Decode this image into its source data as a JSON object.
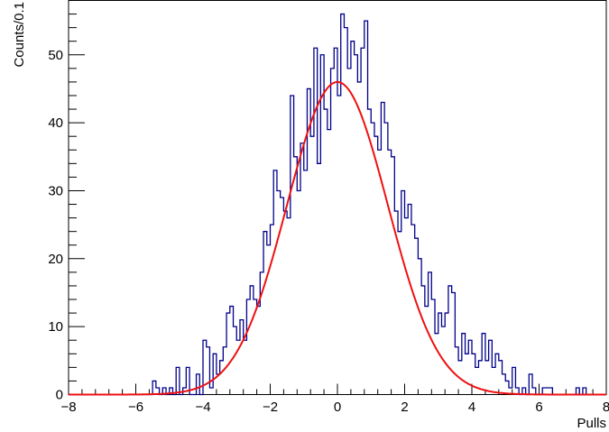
{
  "chart_data": {
    "type": "histogram",
    "title": "",
    "xlabel": "Pulls",
    "ylabel": "Counts/0.1",
    "xlim": [
      -8,
      8
    ],
    "ylim": [
      0,
      58
    ],
    "bin_width": 0.1,
    "x_ticks": [
      -8,
      -6,
      -4,
      -2,
      0,
      2,
      4,
      6,
      8
    ],
    "x_tick_labels": [
      "−8",
      "−6",
      "−4",
      "−2",
      "0",
      "2",
      "4",
      "6",
      "8"
    ],
    "y_ticks": [
      0,
      10,
      20,
      30,
      40,
      50
    ],
    "y_tick_labels": [
      "0",
      "10",
      "20",
      "30",
      "40",
      "50"
    ],
    "grid": false,
    "histogram_color": "#00008b",
    "fit_color": "#ee1111",
    "histogram": {
      "bin_starts": [
        -5.5,
        -5.4,
        -5.3,
        -5.2,
        -5.1,
        -5.0,
        -4.9,
        -4.8,
        -4.7,
        -4.6,
        -4.5,
        -4.4,
        -4.3,
        -4.2,
        -4.1,
        -4.0,
        -3.9,
        -3.8,
        -3.7,
        -3.6,
        -3.5,
        -3.4,
        -3.3,
        -3.2,
        -3.1,
        -3.0,
        -2.9,
        -2.8,
        -2.7,
        -2.6,
        -2.5,
        -2.4,
        -2.3,
        -2.2,
        -2.1,
        -2.0,
        -1.9,
        -1.8,
        -1.7,
        -1.6,
        -1.5,
        -1.4,
        -1.3,
        -1.2,
        -1.1,
        -1.0,
        -0.9,
        -0.8,
        -0.7,
        -0.6,
        -0.5,
        -0.4,
        -0.3,
        -0.2,
        -0.1,
        0.0,
        0.1,
        0.2,
        0.3,
        0.4,
        0.5,
        0.6,
        0.7,
        0.8,
        0.9,
        1.0,
        1.1,
        1.2,
        1.3,
        1.4,
        1.5,
        1.6,
        1.7,
        1.8,
        1.9,
        2.0,
        2.1,
        2.2,
        2.3,
        2.4,
        2.5,
        2.6,
        2.7,
        2.8,
        2.9,
        3.0,
        3.1,
        3.2,
        3.3,
        3.4,
        3.5,
        3.6,
        3.7,
        3.8,
        3.9,
        4.0,
        4.1,
        4.2,
        4.3,
        4.4,
        4.5,
        4.6,
        4.7,
        4.8,
        4.9,
        5.0,
        5.1,
        5.2,
        5.3,
        5.4,
        5.5,
        5.6,
        5.7,
        5.8,
        5.9,
        6.0,
        6.1,
        6.2,
        6.3,
        6.4,
        6.5,
        6.6,
        6.7,
        6.8,
        6.9,
        7.0,
        7.1,
        7.2,
        7.3,
        7.4,
        7.5,
        7.6,
        7.7,
        7.8,
        7.9
      ],
      "counts": [
        2,
        1,
        0,
        1,
        0,
        1,
        0,
        4,
        0,
        1,
        4,
        0,
        0,
        3,
        0,
        8,
        7,
        1,
        6,
        3,
        5,
        7,
        12,
        13,
        10,
        8,
        11,
        8,
        14,
        16,
        14,
        13,
        18,
        24,
        22,
        25,
        33,
        30,
        29,
        27,
        26,
        44,
        35,
        30,
        37,
        33,
        45,
        38,
        51,
        34,
        50,
        42,
        39,
        48,
        51,
        44,
        56,
        54,
        48,
        52,
        50,
        46,
        51,
        55,
        42,
        40,
        38,
        36,
        43,
        40,
        36,
        35,
        27,
        24,
        30,
        26,
        28,
        25,
        23,
        20,
        16,
        13,
        18,
        14,
        9,
        12,
        10,
        12,
        16,
        15,
        7,
        5,
        9,
        6,
        8,
        6,
        4,
        5,
        9,
        5,
        8,
        4,
        6,
        5,
        3,
        2,
        1,
        4,
        1,
        0,
        1,
        0,
        3,
        1,
        0,
        0,
        1,
        1,
        1,
        0,
        0,
        0,
        0,
        0,
        0,
        0,
        1,
        0,
        1,
        0,
        0,
        0,
        0,
        0,
        0,
        1
      ]
    },
    "fit": {
      "type": "gaussian",
      "amplitude": 46,
      "mean": 0.0,
      "sigma": 1.5
    }
  }
}
